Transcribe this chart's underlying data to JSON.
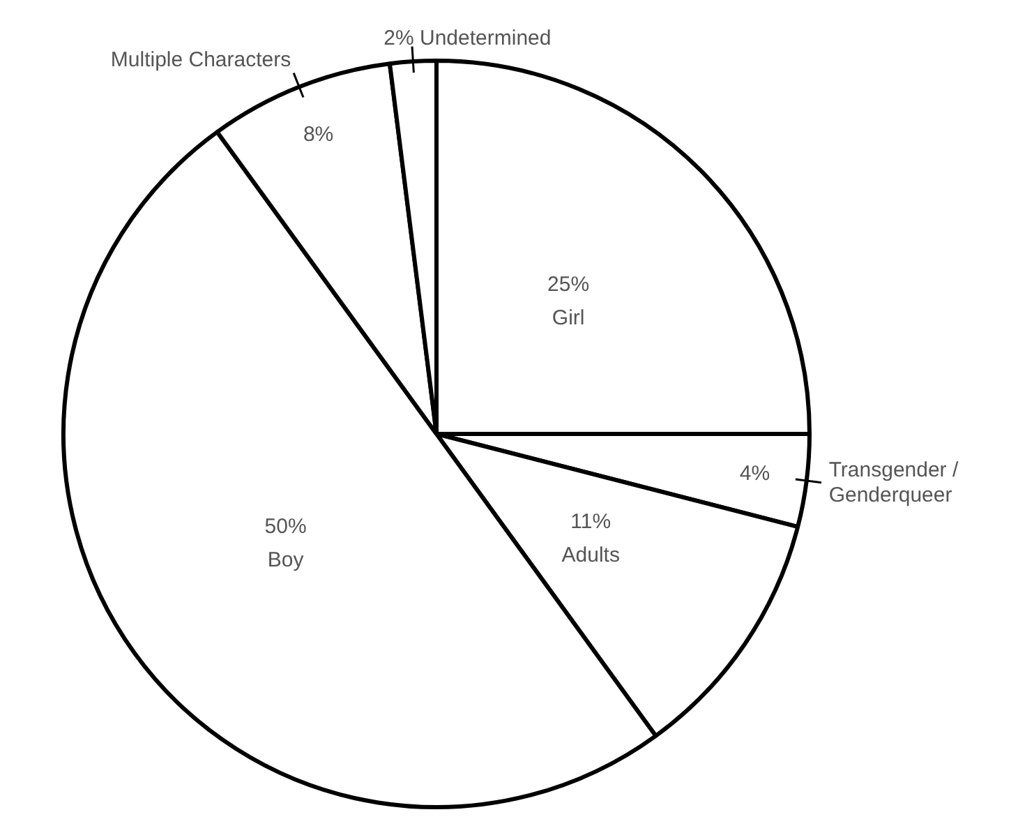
{
  "chart_data": {
    "type": "pie",
    "categories": [
      "Girl",
      "Transgender / Genderqueer",
      "Adults",
      "Boy",
      "Multiple Characters",
      "Undetermined"
    ],
    "values": [
      25,
      4,
      11,
      50,
      8,
      2
    ],
    "value_labels": [
      "25%",
      "4%",
      "11%",
      "50%",
      "8%",
      "2%"
    ],
    "colors": [
      "#ffffff",
      "#ffffff",
      "#ffffff",
      "#ffffff",
      "#ffffff",
      "#ffffff"
    ],
    "legend": false
  }
}
